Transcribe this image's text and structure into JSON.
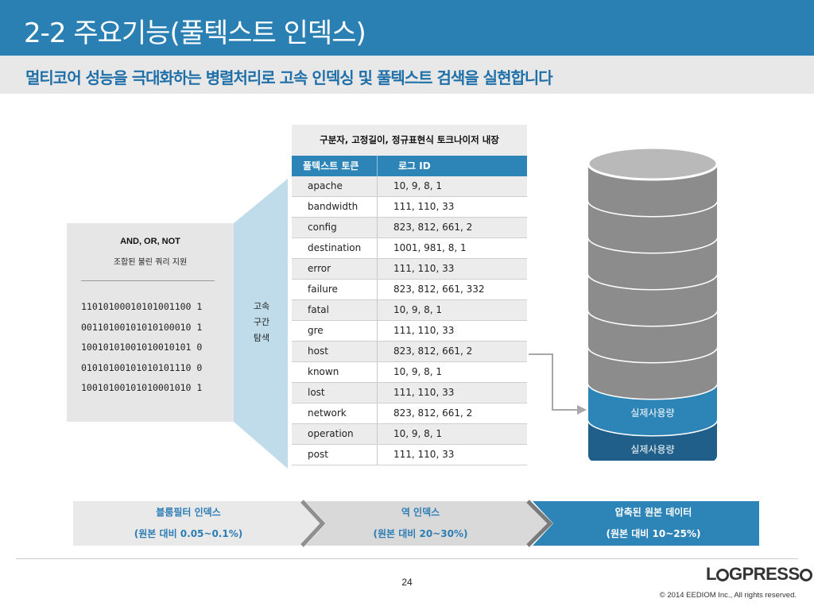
{
  "header": {
    "title": "2-2 주요기능(풀텍스트 인덱스)",
    "subtitle": "멀티코어 성능을 극대화하는 병렬처리로 고속 인덱싱 및 풀텍스트 검색을 실현합니다"
  },
  "left_box": {
    "heading": "AND, OR, NOT",
    "subheading": "조합된 불린 쿼리 지원",
    "bits": [
      "11010100010101001100 1",
      "00110100101010100010 1",
      "10010101001010010101 0",
      "01010100101010101110 0",
      "10010100101010001010 1"
    ]
  },
  "funnel_label": [
    "고속",
    "구간",
    "탐색"
  ],
  "table": {
    "title": "구분자, 고정길이, 정규표현식 토크나이저 내장",
    "col_token": "풀텍스트 토큰",
    "col_id": "로그 ID",
    "rows": [
      {
        "token": "apache",
        "ids": "10, 9, 8, 1"
      },
      {
        "token": "bandwidth",
        "ids": "111, 110, 33"
      },
      {
        "token": "config",
        "ids": "823, 812, 661, 2"
      },
      {
        "token": "destination",
        "ids": "1001, 981, 8, 1"
      },
      {
        "token": "error",
        "ids": "111, 110, 33"
      },
      {
        "token": "failure",
        "ids": "823, 812, 661, 332"
      },
      {
        "token": "fatal",
        "ids": "10, 9, 8, 1"
      },
      {
        "token": "gre",
        "ids": "111, 110, 33"
      },
      {
        "token": "host",
        "ids": "823, 812, 661, 2"
      },
      {
        "token": "known",
        "ids": "10, 9, 8, 1"
      },
      {
        "token": "lost",
        "ids": "111, 110, 33"
      },
      {
        "token": "network",
        "ids": "823, 812, 661, 2"
      },
      {
        "token": "operation",
        "ids": "10, 9, 8, 1"
      },
      {
        "token": "post",
        "ids": "111, 110, 33"
      }
    ]
  },
  "database": {
    "disk_label_1": "실제사용량",
    "disk_label_2": "실제사용량",
    "color_gray": "#8c8c8c",
    "color_blue": "#2d84b7",
    "color_dark_blue": "#1f5f8a"
  },
  "flow": {
    "step1_title": "블룸필터 인덱스",
    "step1_ratio": "(원본 대비 0.05~0.1%)",
    "step2_title": "역 인덱스",
    "step2_ratio": "(원본 대비 20~30%)",
    "step3_title": "압축된 원본 데이터",
    "step3_ratio": "(원본 대비 10~25%)"
  },
  "footer": {
    "page_number": "24",
    "logo_pre": "L",
    "logo_post": "GPRESS",
    "copyright": "© 2014 EEDIOM Inc., All rights reserved."
  }
}
